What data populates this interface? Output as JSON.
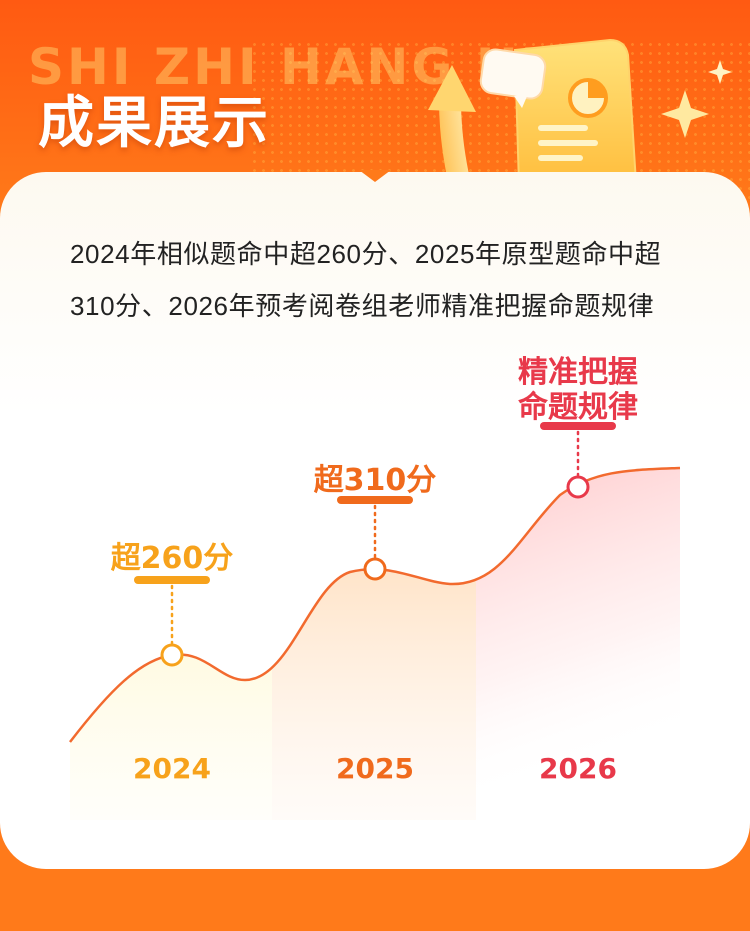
{
  "header": {
    "watermark": "SHI ZHI HANG HUI",
    "title": "成果展示"
  },
  "description": "2024年相似题命中超260分、2025年原型题命中超310分、2026年预考阅卷组老师精准把握命题规律",
  "chart_data": {
    "type": "area",
    "categories": [
      "2024",
      "2025",
      "2026"
    ],
    "annotations": [
      "超260分",
      "超310分",
      "精准把握命题规律"
    ],
    "annotation_lines": [
      [
        "超260分"
      ],
      [
        "超310分"
      ],
      [
        "精准把握",
        "命题规律"
      ]
    ],
    "colors": [
      "#f7a21b",
      "#f06a1c",
      "#e8394a"
    ],
    "line_color": "#f26a2e"
  }
}
